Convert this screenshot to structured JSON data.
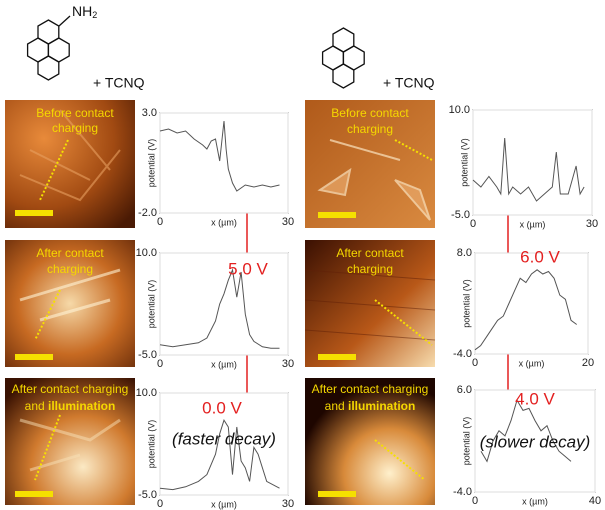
{
  "molecules": [
    {
      "group": "NH",
      "group_subscript": "2",
      "partner": "+ TCNQ"
    },
    {
      "partner": "+ TCNQ"
    }
  ],
  "panels": [
    {
      "line1": "Before contact",
      "line2": "charging"
    },
    {
      "line1": "After contact",
      "line2": "charging"
    },
    {
      "line1": "After contact charging",
      "line2": "and ",
      "emphasis": "illumination"
    },
    {
      "line1": "Before contact",
      "line2": "charging"
    },
    {
      "line1": "After contact",
      "line2": "charging"
    },
    {
      "line1": "After contact charging",
      "line2": "and ",
      "emphasis": "illumination"
    }
  ],
  "chart_data": [
    {
      "type": "line",
      "xlabel": "x (µm)",
      "ylabel": "potential (V)",
      "grid": true,
      "color": "#555555",
      "xlim": [
        0,
        30
      ],
      "xticks": [
        0,
        30
      ],
      "ylim": [
        -2,
        3
      ],
      "yticks": [
        {
          "value": -2,
          "label": "-2.0"
        },
        {
          "value": 3,
          "label": "3.0"
        }
      ],
      "x": [
        0,
        2,
        4,
        6,
        8,
        10,
        11,
        12,
        13,
        14,
        15,
        15.5,
        16,
        17,
        18,
        20,
        22,
        24,
        26,
        28
      ],
      "values": [
        2.1,
        2.2,
        2.0,
        2.1,
        1.7,
        1.4,
        1.2,
        1.6,
        1.7,
        0.6,
        2.6,
        1.2,
        0.2,
        -0.5,
        -0.9,
        -0.6,
        -0.7,
        -0.6,
        -0.7,
        -0.6
      ],
      "annotations": []
    },
    {
      "type": "line",
      "xlabel": "x (µm)",
      "ylabel": "potential (V)",
      "grid": true,
      "color": "#555555",
      "xlim": [
        0,
        30
      ],
      "xticks": [
        0,
        30
      ],
      "ylim": [
        -5,
        10
      ],
      "yticks": [
        {
          "value": -5,
          "label": "-5.0"
        },
        {
          "value": 10,
          "label": "10.0"
        }
      ],
      "x": [
        0,
        3,
        6,
        9,
        11,
        13,
        14,
        15,
        16,
        17,
        18,
        19,
        20,
        21,
        22,
        24,
        26,
        28
      ],
      "values": [
        -3.5,
        -3.8,
        -3.5,
        -3.2,
        -2.5,
        0,
        2.5,
        4,
        6,
        7.5,
        3.5,
        7.2,
        1,
        -2,
        -3,
        -3.8,
        -4,
        -4
      ],
      "annotations": [
        "5.0 V"
      ]
    },
    {
      "type": "line",
      "xlabel": "x (µm)",
      "ylabel": "potential (V)",
      "grid": true,
      "color": "#555555",
      "xlim": [
        0,
        30
      ],
      "xticks": [
        0,
        30
      ],
      "ylim": [
        -5,
        10
      ],
      "yticks": [
        {
          "value": -5,
          "label": "-5.0"
        },
        {
          "value": 10,
          "label": "10.0"
        }
      ],
      "x": [
        0,
        3,
        6,
        9,
        11,
        13,
        14,
        15,
        16,
        17,
        18,
        19,
        20,
        21,
        22,
        23,
        25,
        28
      ],
      "values": [
        -4,
        -4.2,
        -3.8,
        -3,
        -2,
        1,
        4,
        6,
        5,
        -2,
        5,
        0,
        -1,
        -3,
        2,
        1,
        -3,
        -4
      ],
      "annotations": [
        "0.0 V",
        "(faster decay)"
      ]
    },
    {
      "type": "line",
      "xlabel": "x (µm)",
      "ylabel": "potential (V)",
      "grid": true,
      "color": "#555555",
      "xlim": [
        0,
        30
      ],
      "xticks": [
        0,
        30
      ],
      "ylim": [
        -5,
        10
      ],
      "yticks": [
        {
          "value": -5,
          "label": "-5.0"
        },
        {
          "value": 10,
          "label": "10.0"
        }
      ],
      "x": [
        0,
        2,
        4,
        6,
        7,
        8,
        9,
        10,
        12,
        14,
        16,
        18,
        20,
        21,
        22,
        24,
        26,
        27,
        28
      ],
      "values": [
        0,
        -1,
        0.5,
        -1,
        -2,
        6,
        -2,
        -1,
        -2,
        -1,
        -3,
        -2,
        -1,
        4,
        -2,
        -2,
        2,
        -2,
        -1
      ],
      "annotations": []
    },
    {
      "type": "line",
      "xlabel": "x (µm)",
      "ylabel": "potential (V)",
      "grid": true,
      "color": "#555555",
      "xlim": [
        0,
        20
      ],
      "xticks": [
        0,
        20
      ],
      "ylim": [
        -4,
        8
      ],
      "yticks": [
        {
          "value": -4,
          "label": "-4.0"
        },
        {
          "value": 8,
          "label": "8.0"
        }
      ],
      "x": [
        0,
        1,
        2,
        3,
        4,
        5,
        6,
        7,
        8,
        9,
        10,
        11,
        12,
        13,
        14,
        15,
        16,
        17,
        18
      ],
      "values": [
        -3.5,
        -3,
        -2,
        -1,
        0,
        0.5,
        2,
        3.5,
        5,
        4.5,
        5.5,
        6,
        5.5,
        5.8,
        5,
        3,
        2.5,
        0,
        -0.5
      ],
      "annotations": [
        "6.0 V"
      ]
    },
    {
      "type": "line",
      "xlabel": "x (µm)",
      "ylabel": "potential (V)",
      "grid": true,
      "color": "#555555",
      "xlim": [
        0,
        40
      ],
      "xticks": [
        0,
        40
      ],
      "ylim": [
        -4,
        6
      ],
      "yticks": [
        {
          "value": -4,
          "label": "-4.0"
        },
        {
          "value": 6,
          "label": "6.0"
        }
      ],
      "x": [
        2,
        4,
        6,
        8,
        10,
        12,
        14,
        16,
        18,
        20,
        22,
        24,
        26,
        28,
        30,
        32
      ],
      "values": [
        0,
        -1,
        1,
        2,
        1.5,
        3,
        5,
        4,
        4.2,
        3,
        2,
        2.5,
        1,
        0,
        -0.5,
        -1
      ],
      "annotations": [
        "4.0 V",
        "(slower decay)"
      ]
    }
  ]
}
